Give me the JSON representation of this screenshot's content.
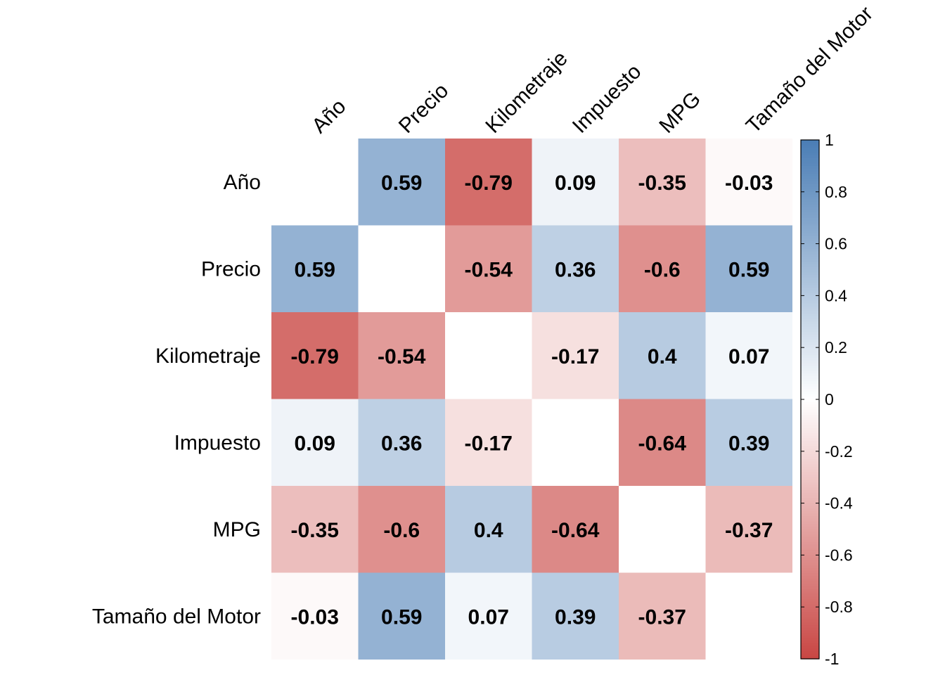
{
  "chart_data": {
    "type": "heatmap",
    "variables": [
      "Año",
      "Precio",
      "Kilometraje",
      "Impuesto",
      "MPG",
      "Tamaño del Motor"
    ],
    "matrix": [
      [
        null,
        0.59,
        -0.79,
        0.09,
        -0.35,
        -0.03
      ],
      [
        0.59,
        null,
        -0.54,
        0.36,
        -0.6,
        0.59
      ],
      [
        -0.79,
        -0.54,
        null,
        -0.17,
        0.4,
        0.07
      ],
      [
        0.09,
        0.36,
        -0.17,
        null,
        -0.64,
        0.39
      ],
      [
        -0.35,
        -0.6,
        0.4,
        -0.64,
        null,
        -0.37
      ],
      [
        -0.03,
        0.59,
        0.07,
        0.39,
        -0.37,
        null
      ]
    ],
    "diagonal": "blank",
    "colorbar": {
      "min": -1,
      "max": 1,
      "ticks": [
        "1",
        "0.8",
        "0.6",
        "0.4",
        "0.2",
        "0",
        "-0.2",
        "-0.4",
        "-0.6",
        "-0.8",
        "-1"
      ],
      "tick_values": [
        1,
        0.8,
        0.6,
        0.4,
        0.2,
        0,
        -0.2,
        -0.4,
        -0.6,
        -0.8,
        -1
      ],
      "placement": "right"
    },
    "colors": {
      "negative": "#c94643",
      "zero": "#ffffff",
      "positive": "#4a7db5",
      "text": "#000000"
    }
  }
}
